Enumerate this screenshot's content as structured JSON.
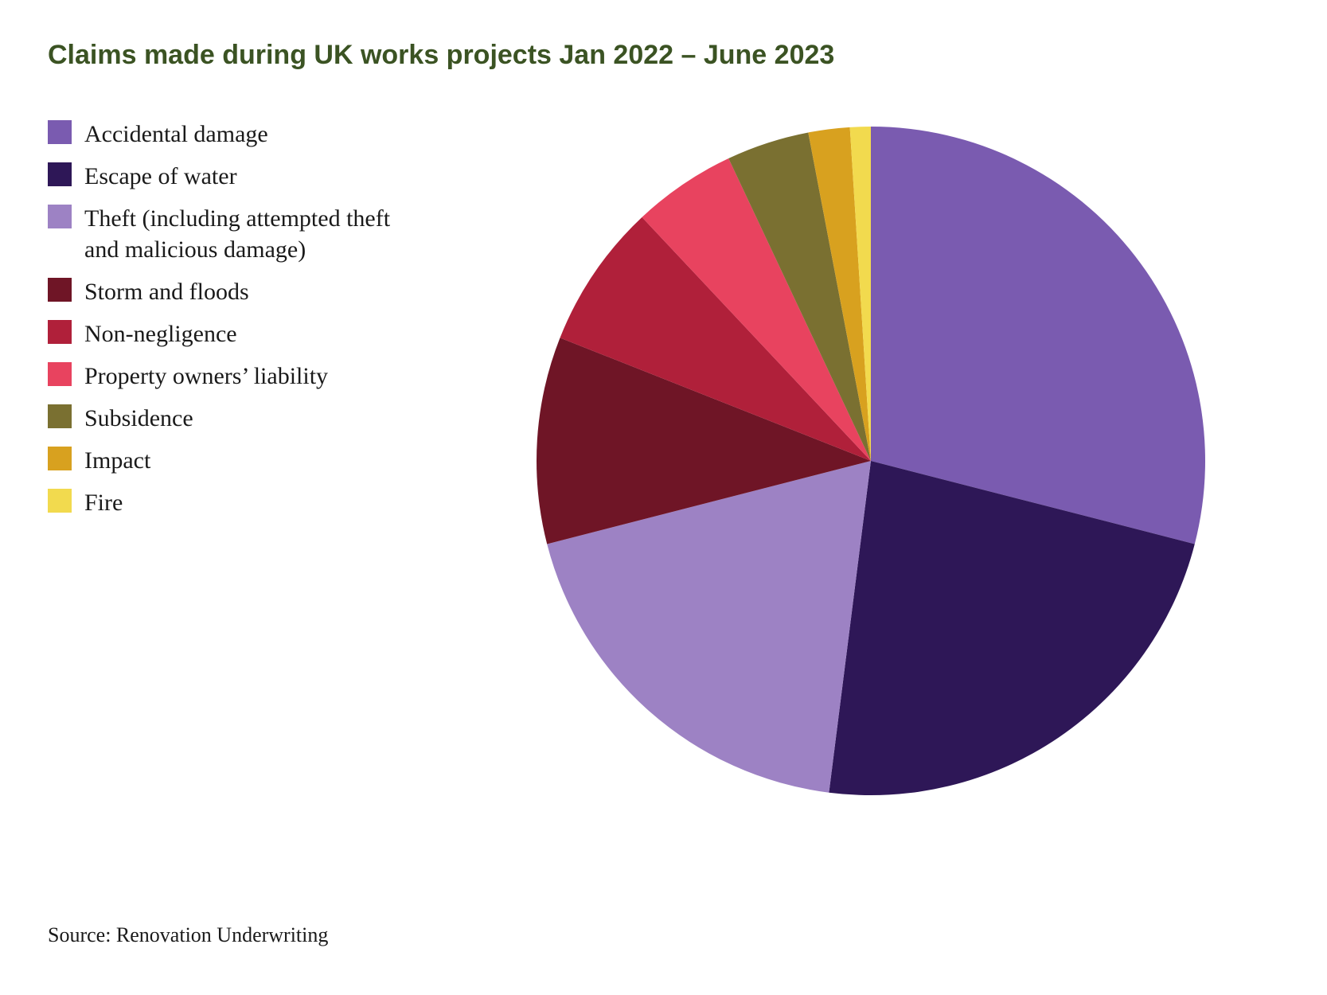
{
  "chart": {
    "type": "pie",
    "title": "Claims made during UK works projects Jan 2022 – June 2023",
    "title_color": "#3b5323",
    "title_fontsize": 34,
    "title_fontweight": 600,
    "background_color": "#ffffff",
    "legend_position": "left",
    "legend_fontsize": 30,
    "legend_font_family": "Georgia, serif",
    "legend_text_color": "#1a1a1a",
    "pie_radius": 420,
    "pie_start_angle_deg": 0,
    "pie_direction": "clockwise",
    "source_text": "Source: Renovation Underwriting",
    "source_fontsize": 26,
    "source_color": "#1a1a1a",
    "series": [
      {
        "label": "Accidental damage",
        "value": 29,
        "color": "#7a5bb0"
      },
      {
        "label": "Escape of water",
        "value": 23,
        "color": "#2e1757"
      },
      {
        "label": "Theft (including attempted theft and malicious damage)",
        "value": 19,
        "color": "#9d82c4"
      },
      {
        "label": "Storm and floods",
        "value": 10,
        "color": "#6f1526"
      },
      {
        "label": "Non-negligence",
        "value": 7,
        "color": "#b0203a"
      },
      {
        "label": "Property owners’ liability",
        "value": 5,
        "color": "#e8435f"
      },
      {
        "label": "Subsidence",
        "value": 4,
        "color": "#7a7031"
      },
      {
        "label": "Impact",
        "value": 2,
        "color": "#d8a11f"
      },
      {
        "label": "Fire",
        "value": 1,
        "color": "#f2da4e"
      }
    ]
  }
}
